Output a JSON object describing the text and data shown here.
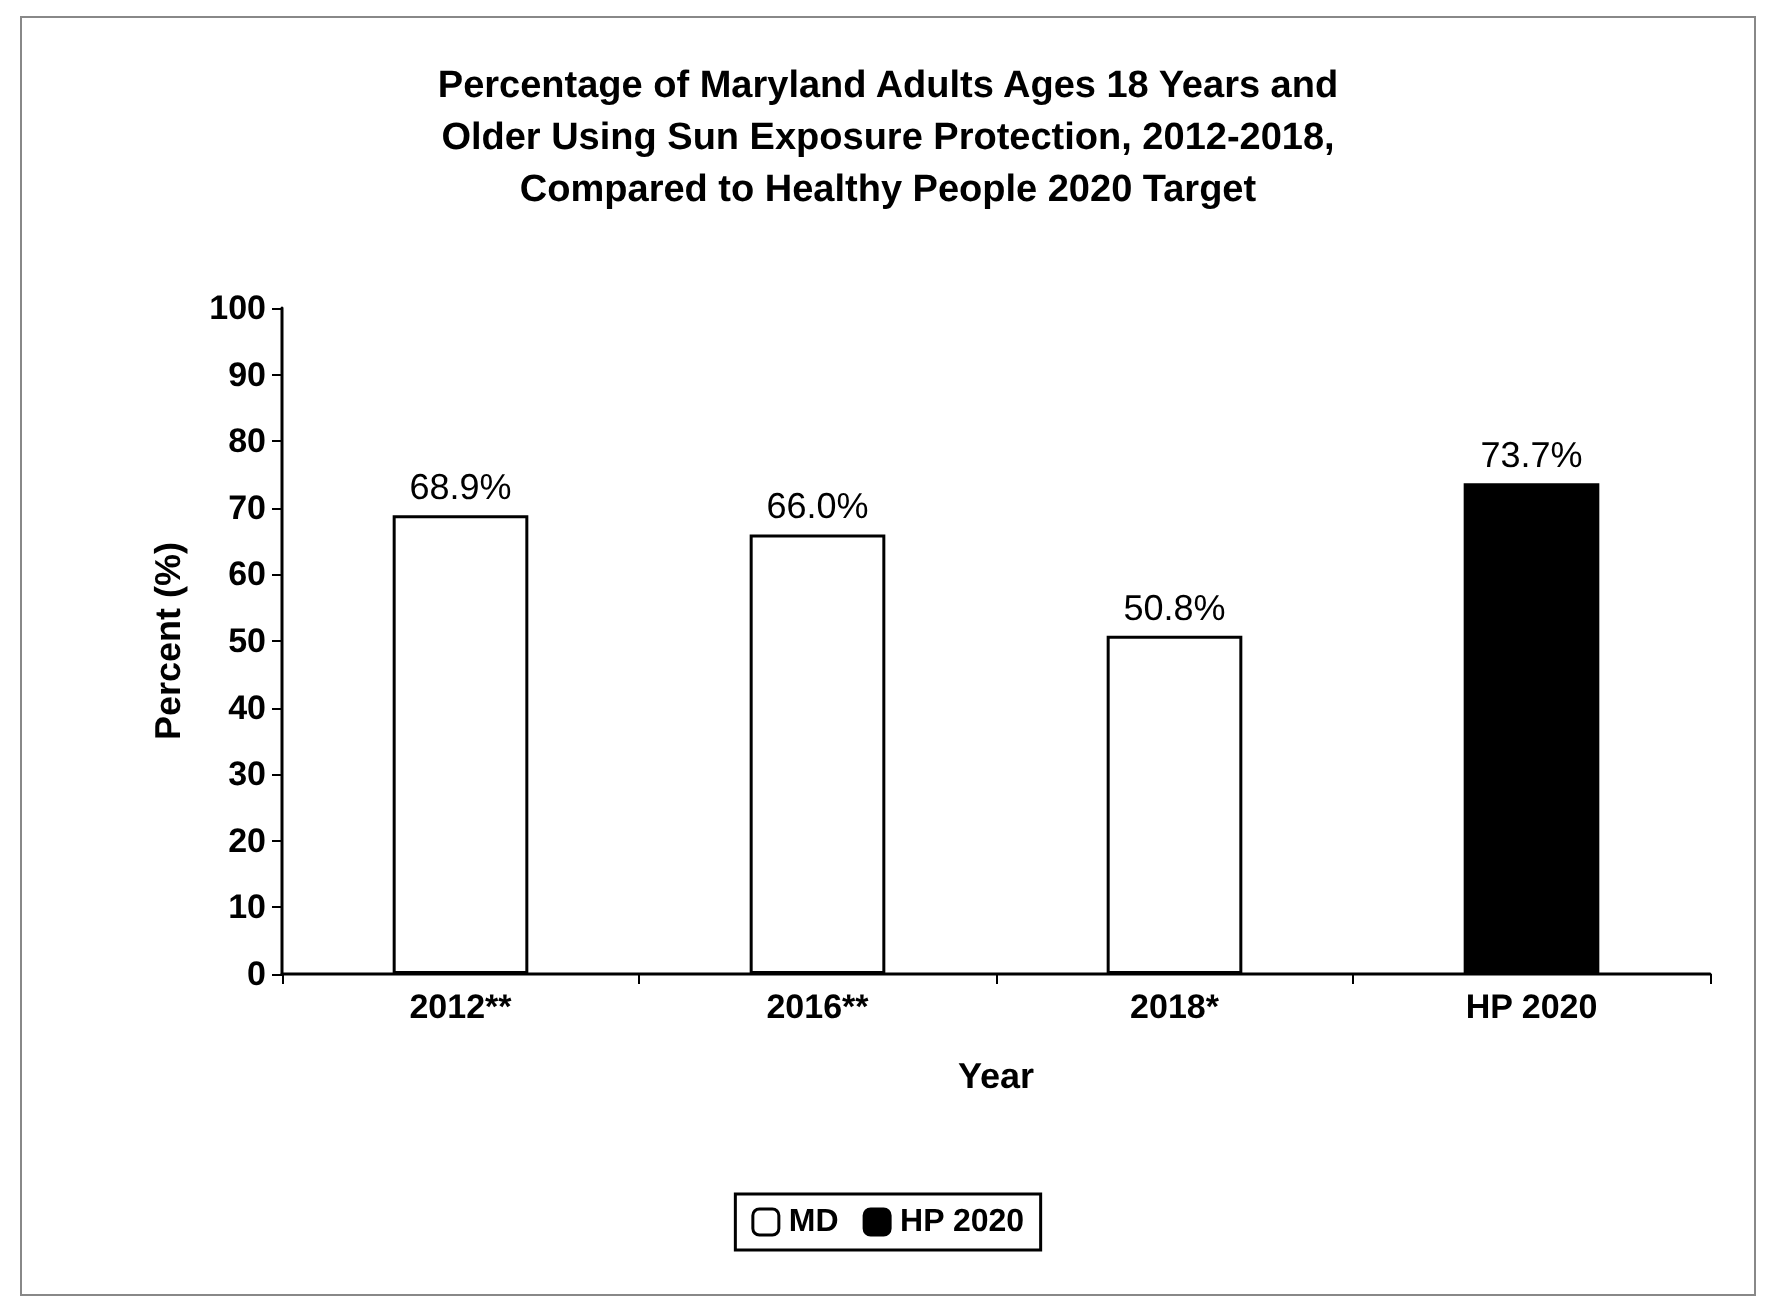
{
  "chart_data": {
    "type": "bar",
    "title": "Percentage of Maryland Adults Ages 18 Years and\nOlder Using Sun Exposure Protection, 2012-2018,\nCompared to Healthy People 2020 Target",
    "categories": [
      "2012**",
      "2016**",
      "2018*",
      "HP 2020"
    ],
    "xlabel": "Year",
    "ylabel": "Percent (%)",
    "ylim": [
      0,
      100
    ],
    "yticks": [
      0,
      10,
      20,
      30,
      40,
      50,
      60,
      70,
      80,
      90,
      100
    ],
    "stacked": true,
    "grid": false,
    "legend": "bottom",
    "series": [
      {
        "name": "MD",
        "color": "#ffffff",
        "values": [
          68.9,
          66.0,
          50.8,
          null
        ],
        "value_labels": [
          "68.9%",
          "66.0%",
          "50.8%",
          null
        ]
      },
      {
        "name": "HP 2020",
        "color": "#000000",
        "values": [
          null,
          null,
          null,
          73.7
        ],
        "value_labels": [
          null,
          null,
          null,
          "73.7%"
        ]
      }
    ]
  }
}
